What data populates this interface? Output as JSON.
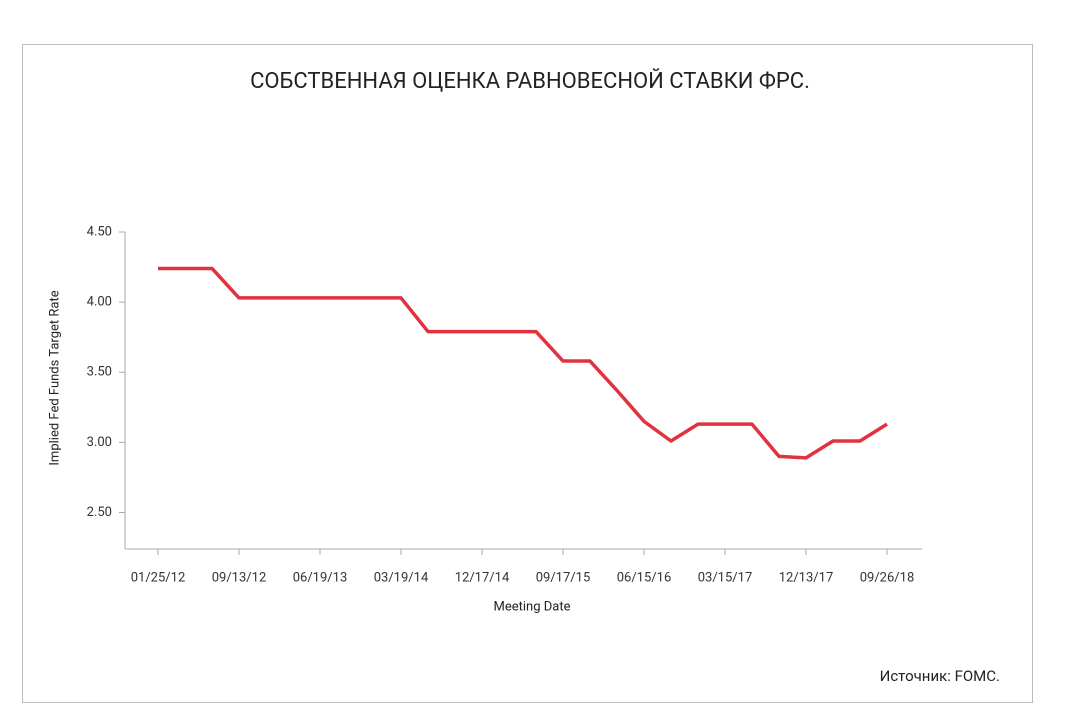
{
  "chart_data": {
    "type": "line",
    "title": "СОБСТВЕННАЯ ОЦЕНКА РАВНОВЕСНОЙ СТАВКИ ФРС.",
    "x_label": "Meeting Date",
    "y_label": "Implied Fed Funds Target Rate",
    "source": "Источник: FOMC.",
    "categories": [
      "01/25/12",
      null,
      null,
      "09/13/12",
      null,
      null,
      "06/19/13",
      null,
      null,
      "03/19/14",
      null,
      null,
      "12/17/14",
      null,
      null,
      "09/17/15",
      null,
      null,
      "06/15/16",
      null,
      null,
      "03/15/17",
      null,
      null,
      "12/13/17",
      null,
      null,
      "09/26/18"
    ],
    "series": [
      {
        "name": "Implied Fed Funds Target Rate",
        "color": "#e2323f",
        "values": [
          4.24,
          4.24,
          4.24,
          4.03,
          4.03,
          4.03,
          4.03,
          4.03,
          4.03,
          4.03,
          3.79,
          3.79,
          3.79,
          3.79,
          3.79,
          3.58,
          3.58,
          3.37,
          3.15,
          3.01,
          3.13,
          3.13,
          3.13,
          2.9,
          2.89,
          3.01,
          3.01,
          3.13
        ]
      }
    ],
    "ylim": [
      2.24,
      4.5
    ],
    "yticks": [
      {
        "value": 2.5,
        "label": "2.50"
      },
      {
        "value": 3,
        "label": "3.00"
      },
      {
        "value": 3.5,
        "label": "3.50"
      },
      {
        "value": 4,
        "label": "4.00"
      },
      {
        "value": 4.5,
        "label": "4.50"
      }
    ],
    "grid": false
  }
}
